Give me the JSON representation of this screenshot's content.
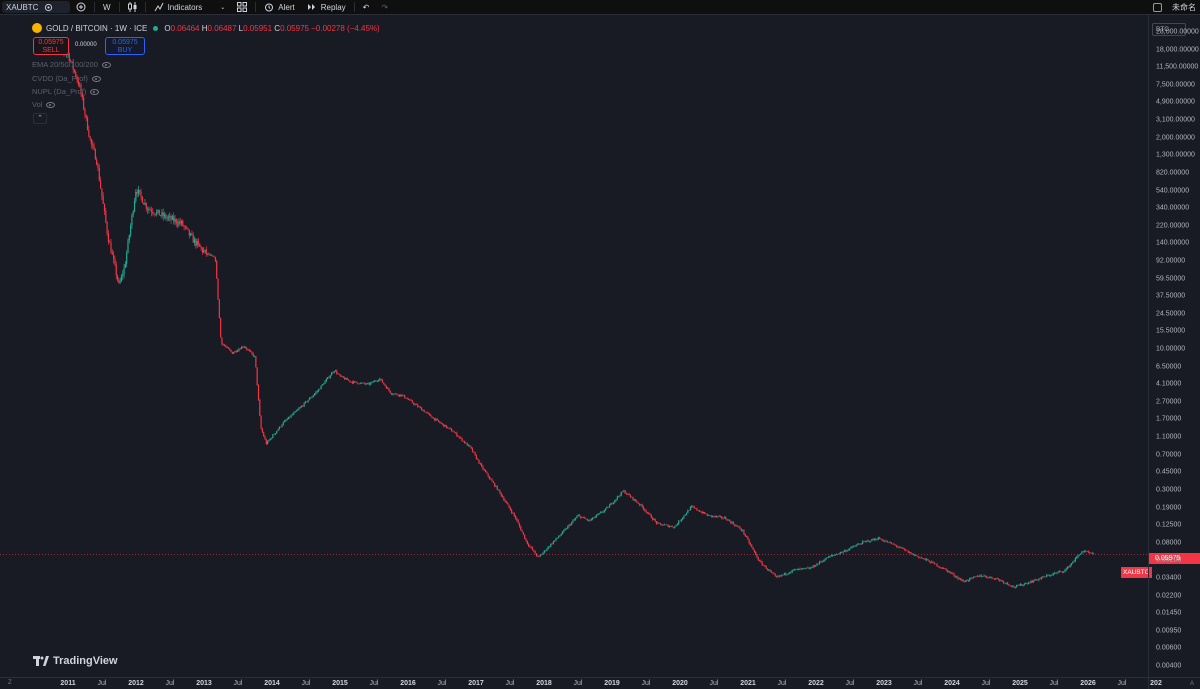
{
  "toolbar": {
    "symbol": "XAUBTC",
    "interval": "W",
    "indicators_label": "Indicators",
    "alert_label": "Alert",
    "replay_label": "Replay",
    "layout_name": "未命名"
  },
  "legend": {
    "title": "GOLD / BITCOIN · 1W · ICE",
    "open_label": "O",
    "open": "0.06464",
    "high_label": "H",
    "high": "0.06487",
    "low_label": "L",
    "low": "0.05951",
    "close_label": "C",
    "close": "0.05975",
    "change": "−0.00278 (−4.45%)"
  },
  "trade": {
    "sell_price": "0.05975",
    "sell_label": "SELL",
    "spread": "0.00000",
    "buy_price": "0.05975",
    "buy_label": "BUY"
  },
  "indicators": [
    {
      "label": "EMA 20/50/100/200"
    },
    {
      "label": "CVDD (Da_Prof)"
    },
    {
      "label": "NUPL (Da_Prof)"
    },
    {
      "label": "Vol"
    }
  ],
  "watermark": "TradingView",
  "price_scale": {
    "currency": "BTC",
    "ticks": [
      "28,000.00000",
      "18,000.00000",
      "11,500.00000",
      "7,500.00000",
      "4,900.00000",
      "3,100.00000",
      "2,000.00000",
      "1,300.00000",
      "820.00000",
      "540.00000",
      "340.00000",
      "220.00000",
      "140.00000",
      "92.00000",
      "59.50000",
      "37.50000",
      "24.50000",
      "15.50000",
      "10.00000",
      "6.50000",
      "4.10000",
      "2.70000",
      "1.70000",
      "1.10000",
      "0.70000",
      "0.45000",
      "0.30000",
      "0.19000",
      "0.12500",
      "0.08000",
      "0.05200",
      "0.03400",
      "0.02200",
      "0.01450",
      "0.00950",
      "0.00600",
      "0.00400"
    ]
  },
  "time_scale": {
    "ticks": [
      {
        "label": "2011",
        "year": true
      },
      {
        "label": "Jul",
        "year": false
      },
      {
        "label": "2012",
        "year": true
      },
      {
        "label": "Jul",
        "year": false
      },
      {
        "label": "2013",
        "year": true
      },
      {
        "label": "Jul",
        "year": false
      },
      {
        "label": "2014",
        "year": true
      },
      {
        "label": "Jul",
        "year": false
      },
      {
        "label": "2015",
        "year": true
      },
      {
        "label": "Jul",
        "year": false
      },
      {
        "label": "2016",
        "year": true
      },
      {
        "label": "Jul",
        "year": false
      },
      {
        "label": "2017",
        "year": true
      },
      {
        "label": "Jul",
        "year": false
      },
      {
        "label": "2018",
        "year": true
      },
      {
        "label": "Jul",
        "year": false
      },
      {
        "label": "2019",
        "year": true
      },
      {
        "label": "Jul",
        "year": false
      },
      {
        "label": "2020",
        "year": true
      },
      {
        "label": "Jul",
        "year": false
      },
      {
        "label": "2021",
        "year": true
      },
      {
        "label": "Jul",
        "year": false
      },
      {
        "label": "2022",
        "year": true
      },
      {
        "label": "Jul",
        "year": false
      },
      {
        "label": "2023",
        "year": true
      },
      {
        "label": "Jul",
        "year": false
      },
      {
        "label": "2024",
        "year": true
      },
      {
        "label": "Jul",
        "year": false
      },
      {
        "label": "2025",
        "year": true
      },
      {
        "label": "Jul",
        "year": false
      },
      {
        "label": "2026",
        "year": true
      },
      {
        "label": "Jul",
        "year": false
      },
      {
        "label": "202",
        "year": true
      }
    ]
  },
  "current_price": {
    "symbol": "XAUBTC",
    "value": "0.05975",
    "value_num": 0.05975
  },
  "chart_data": {
    "type": "line",
    "x": [
      "2010-10",
      "2011-01",
      "2011-03",
      "2011-05",
      "2011-06",
      "2011-08",
      "2011-10",
      "2011-11",
      "2012-01",
      "2012-03",
      "2012-06",
      "2012-09",
      "2012-11",
      "2013-01",
      "2013-03",
      "2013-04",
      "2013-06",
      "2013-08",
      "2013-10",
      "2013-11",
      "2013-12",
      "2014-03",
      "2014-06",
      "2014-09",
      "2014-12",
      "2015-01",
      "2015-03",
      "2015-06",
      "2015-08",
      "2015-10",
      "2015-12",
      "2016-03",
      "2016-06",
      "2016-09",
      "2016-12",
      "2017-02",
      "2017-05",
      "2017-08",
      "2017-10",
      "2017-12",
      "2018-02",
      "2018-04",
      "2018-07",
      "2018-09",
      "2018-12",
      "2019-03",
      "2019-06",
      "2019-09",
      "2019-12",
      "2020-03",
      "2020-06",
      "2020-09",
      "2020-12",
      "2021-03",
      "2021-06",
      "2021-09",
      "2021-12",
      "2022-03",
      "2022-06",
      "2022-09",
      "2022-12",
      "2023-03",
      "2023-06",
      "2023-09",
      "2023-12",
      "2024-03",
      "2024-06",
      "2024-09",
      "2024-12",
      "2025-03",
      "2025-06",
      "2025-09",
      "2025-12",
      "2026-02"
    ],
    "series": [
      {
        "values": [
          25000,
          20000,
          9000,
          2100,
          1400,
          200,
          55,
          90,
          650,
          400,
          320,
          270,
          180,
          130,
          110,
          13,
          10,
          12,
          9,
          1.5,
          1,
          1.7,
          2.5,
          3.8,
          6.5,
          5.5,
          4.8,
          4.5,
          5.2,
          3.6,
          3.4,
          2.5,
          1.8,
          1.35,
          0.9,
          0.55,
          0.3,
          0.15,
          0.08,
          0.055,
          0.075,
          0.1,
          0.16,
          0.14,
          0.19,
          0.3,
          0.21,
          0.13,
          0.12,
          0.2,
          0.16,
          0.15,
          0.11,
          0.05,
          0.033,
          0.04,
          0.042,
          0.055,
          0.065,
          0.08,
          0.09,
          0.075,
          0.06,
          0.05,
          0.04,
          0.03,
          0.035,
          0.032,
          0.026,
          0.03,
          0.035,
          0.04,
          0.065,
          0.05975
        ]
      }
    ],
    "yscale": "log",
    "ylim": [
      0.0035,
      35000
    ],
    "xlim": [
      "2010-07",
      "2027-01"
    ],
    "grid": false,
    "colors": {
      "up": "#22ab94",
      "down": "#f23645"
    }
  }
}
